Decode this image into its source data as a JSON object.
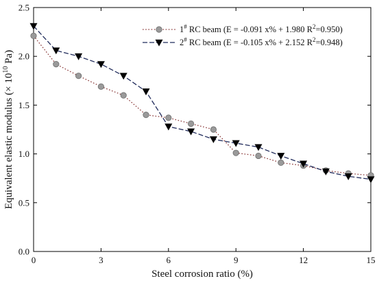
{
  "chart_data": {
    "type": "line",
    "title": "",
    "xlabel": "Steel corrosion ratio (%)",
    "ylabel_main": "Equivalent elastic modulus (",
    "ylabel_times": "×",
    "ylabel_base": " 10",
    "ylabel_exp": "10",
    "ylabel_unit": " Pa)",
    "xlim": [
      0,
      15
    ],
    "ylim": [
      0.0,
      2.5
    ],
    "xticks": [
      0,
      3,
      6,
      9,
      12,
      15
    ],
    "xtick_labels": [
      "0",
      "3",
      "6",
      "9",
      "12",
      "15"
    ],
    "yticks": [
      0.0,
      0.5,
      1.0,
      1.5,
      2.0,
      2.5
    ],
    "ytick_labels": [
      "0.0",
      "0.5",
      "1.0",
      "1.5",
      "2.0",
      "2.5"
    ],
    "grid": false,
    "legend_position": "top-right",
    "series": [
      {
        "name": "1# RC beam",
        "legend_prefix": "1",
        "legend_sup": "#",
        "legend_label": " RC beam",
        "legend_fit": "(E = -0.091 x% + 1.980",
        "legend_r2_base": "R",
        "legend_r2_sup": "2",
        "legend_r2_value": "=0.950)",
        "color": "#9a9a9a",
        "line_color": "#8a3a3a",
        "marker": "circle",
        "line_style": "dotted",
        "x": [
          0,
          1,
          2,
          3,
          4,
          5,
          6,
          7,
          8,
          9,
          10,
          11,
          12,
          13,
          14,
          15
        ],
        "y": [
          2.21,
          1.92,
          1.8,
          1.69,
          1.6,
          1.4,
          1.37,
          1.31,
          1.25,
          1.01,
          0.98,
          0.91,
          0.88,
          0.83,
          0.8,
          0.78
        ]
      },
      {
        "name": "2# RC beam",
        "legend_prefix": "2",
        "legend_sup": "#",
        "legend_label": " RC beam",
        "legend_fit": "(E = -0.105 x% + 2.152",
        "legend_r2_base": "R",
        "legend_r2_sup": "2",
        "legend_r2_value": "=0.948)",
        "color": "#000000",
        "line_color": "#1f2a5a",
        "marker": "triangle-down",
        "line_style": "dashed",
        "x": [
          0,
          1,
          2,
          3,
          4,
          5,
          6,
          7,
          8,
          9,
          10,
          11,
          12,
          13,
          14,
          15
        ],
        "y": [
          2.31,
          2.06,
          2.0,
          1.92,
          1.8,
          1.64,
          1.28,
          1.23,
          1.15,
          1.11,
          1.07,
          0.98,
          0.9,
          0.82,
          0.77,
          0.74
        ]
      }
    ]
  }
}
